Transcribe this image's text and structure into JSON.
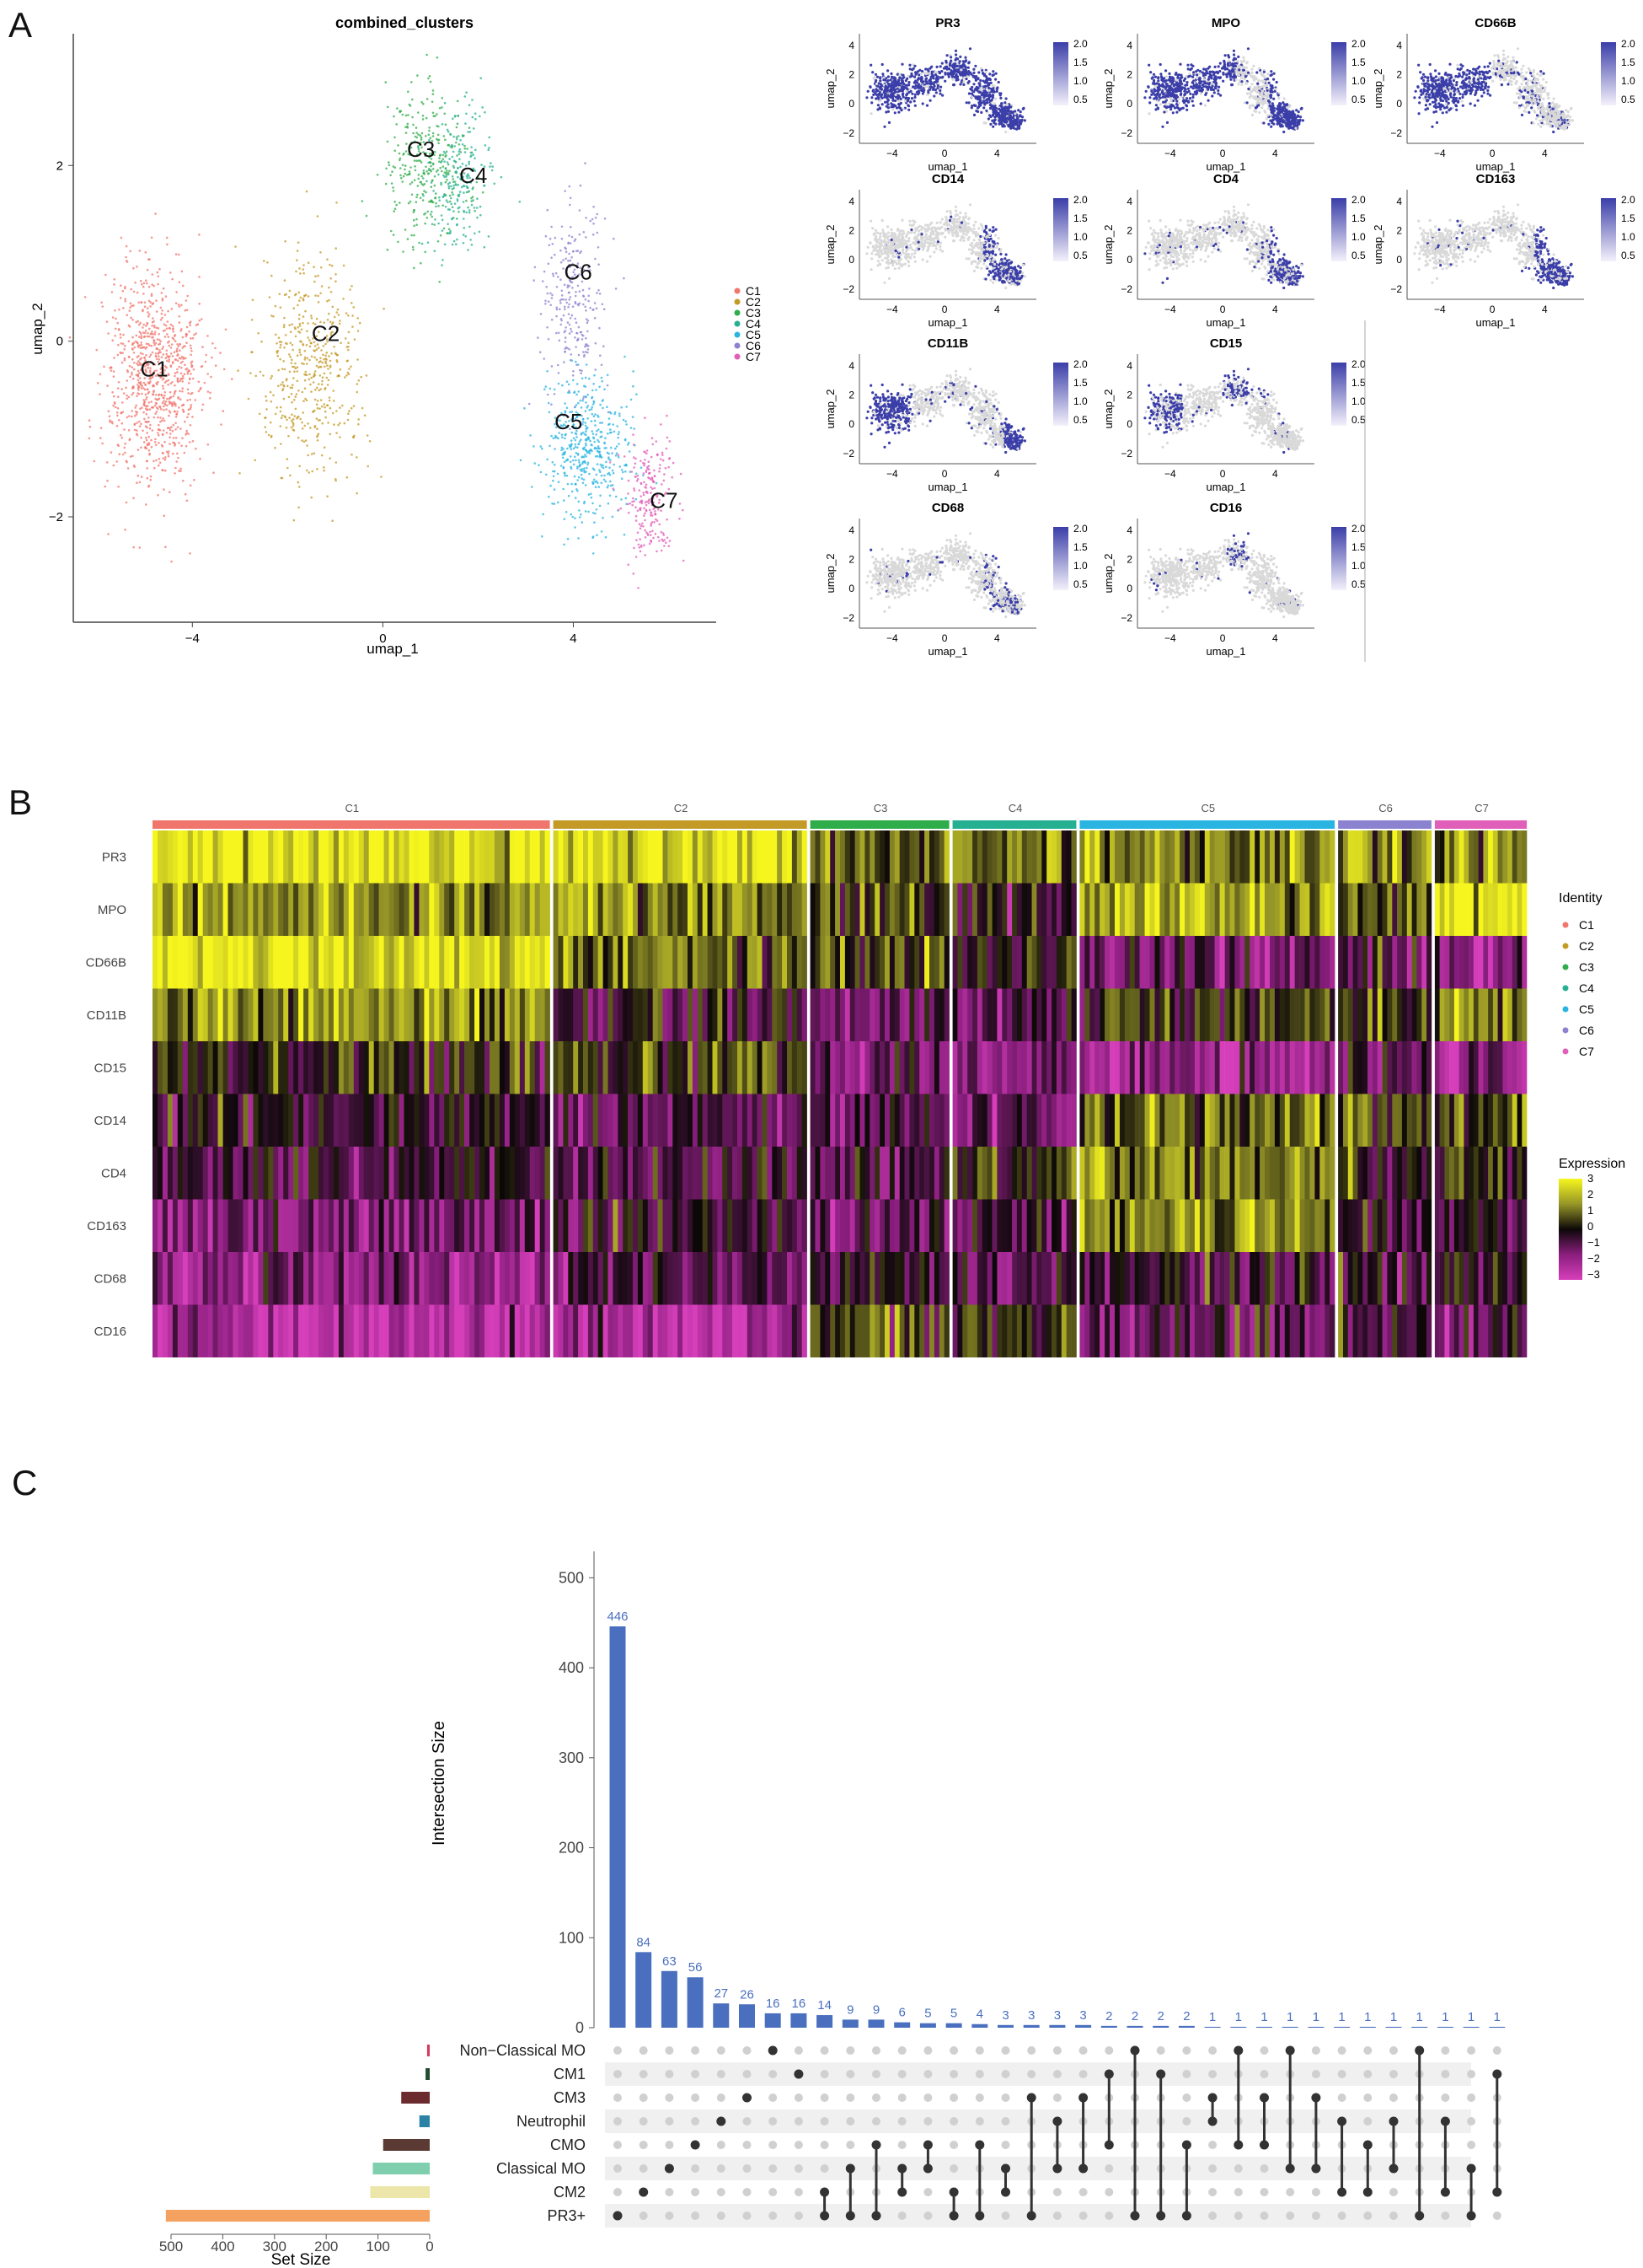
{
  "panels": {
    "a": {
      "letter": "A",
      "umap": {
        "title": "combined_clusters",
        "xlabel": "umap_1",
        "ylabel": "umap_2",
        "xticks": [
          "−4",
          "0",
          "4"
        ],
        "yticks": [
          "2",
          "0",
          "−2"
        ],
        "cluster_labels": [
          "C1",
          "C2",
          "C3",
          "C4",
          "C5",
          "C6",
          "C7"
        ],
        "legend": [
          "C1",
          "C2",
          "C3",
          "C4",
          "C5",
          "C6",
          "C7"
        ]
      },
      "feature_plots": {
        "xlabel": "umap_1",
        "ylabel": "umap_2",
        "xticks": [
          "−4",
          "0",
          "4"
        ],
        "yticks": [
          "4",
          "2",
          "0",
          "−2"
        ],
        "scale_ticks": [
          "2.0",
          "1.5",
          "1.0",
          "0.5"
        ],
        "markers": [
          "PR3",
          "MPO",
          "CD66B",
          "CD14",
          "CD4",
          "CD163",
          "CD11B",
          "CD15",
          "CD68",
          "CD16"
        ]
      }
    },
    "b": {
      "letter": "B",
      "clusters": [
        "C1",
        "C2",
        "C3",
        "C4",
        "C5",
        "C6",
        "C7"
      ],
      "genes": [
        "PR3",
        "MPO",
        "CD66B",
        "CD11B",
        "CD15",
        "CD14",
        "CD4",
        "CD163",
        "CD68",
        "CD16"
      ],
      "identity_title": "Identity",
      "identity_items": [
        "C1",
        "C2",
        "C3",
        "C4",
        "C5",
        "C6",
        "C7"
      ],
      "expression_title": "Expression",
      "expression_ticks": [
        "3",
        "2",
        "1",
        "0",
        "−1",
        "−2",
        "−3"
      ]
    },
    "c": {
      "letter": "C",
      "y_axis_label": "Intersection Size",
      "y_ticks": [
        "0",
        "100",
        "200",
        "300",
        "400",
        "500"
      ],
      "set_size_label": "Set Size",
      "set_size_ticks": [
        "500",
        "400",
        "300",
        "200",
        "100",
        "0"
      ]
    }
  },
  "colors": {
    "C1": "#f0766d",
    "C2": "#c49a27",
    "C3": "#2fad4a",
    "C4": "#25b091",
    "C5": "#2ab4e2",
    "C6": "#8c83d0",
    "C7": "#e05fb8",
    "feature_high": "#3b3ea8",
    "feature_low": "#d9d9d9",
    "upset_bar": "#4a6fbf",
    "dot_on": "#333333",
    "dot_off": "#d0d0d0"
  },
  "chart_data": [
    {
      "type": "scatter",
      "title": "combined_clusters",
      "xlabel": "umap_1",
      "ylabel": "umap_2",
      "xlim": [
        -6.5,
        7
      ],
      "ylim": [
        -3.2,
        3.5
      ],
      "series": [
        {
          "name": "C1",
          "center": [
            -4.8,
            -0.4
          ]
        },
        {
          "name": "C2",
          "center": [
            -1.5,
            -0.3
          ]
        },
        {
          "name": "C3",
          "center": [
            0.9,
            2.0
          ]
        },
        {
          "name": "C4",
          "center": [
            1.6,
            1.8
          ]
        },
        {
          "name": "C5",
          "center": [
            4.3,
            -1.2
          ]
        },
        {
          "name": "C6",
          "center": [
            4.0,
            0.5
          ]
        },
        {
          "name": "C7",
          "center": [
            5.6,
            -1.8
          ]
        }
      ]
    },
    {
      "type": "heatmap",
      "x": [
        "C1",
        "C2",
        "C3",
        "C4",
        "C5",
        "C6",
        "C7"
      ],
      "y": [
        "PR3",
        "MPO",
        "CD66B",
        "CD11B",
        "CD15",
        "CD14",
        "CD4",
        "CD163",
        "CD68",
        "CD16"
      ],
      "cluster_widths": [
        0.29,
        0.186,
        0.103,
        0.092,
        0.187,
        0.07,
        0.069
      ],
      "values": [
        [
          2.8,
          2.6,
          1.0,
          1.2,
          1.3,
          1.4,
          1.5
        ],
        [
          1.5,
          1.5,
          0.6,
          -0.4,
          1.8,
          1.0,
          2.9
        ],
        [
          2.9,
          1.0,
          0.5,
          0.0,
          -1.3,
          -0.6,
          -1.6
        ],
        [
          1.5,
          -0.6,
          -0.8,
          -1.0,
          0.3,
          0.4,
          1.2
        ],
        [
          0.1,
          0.6,
          -1.2,
          -1.4,
          -1.8,
          -0.9,
          -1.6
        ],
        [
          -0.3,
          -0.9,
          -1.0,
          -1.2,
          1.1,
          0.9,
          0.9
        ],
        [
          -0.6,
          -0.5,
          -0.8,
          0.1,
          1.3,
          0.0,
          0.2
        ],
        [
          -1.4,
          -0.5,
          -1.0,
          -0.9,
          1.5,
          -0.4,
          -0.3
        ],
        [
          -1.7,
          -0.9,
          -0.5,
          -0.8,
          -0.5,
          -0.3,
          -0.2
        ],
        [
          -2.4,
          -2.1,
          0.3,
          0.2,
          -1.2,
          -0.6,
          -0.9
        ]
      ]
    },
    {
      "type": "bar",
      "title": "",
      "xlabel": "",
      "ylabel": "Intersection Size",
      "ylim": [
        0,
        520
      ],
      "sets": [
        "Non−Classical MO",
        "CM1",
        "CM3",
        "Neutrophil",
        "CMO",
        "Classical MO",
        "CM2",
        "PR3+"
      ],
      "set_colors": [
        "#d6395a",
        "#1f4d2f",
        "#6b2b2f",
        "#2b82a6",
        "#5a3a33",
        "#7fcfae",
        "#ece6ab",
        "#f5a15f"
      ],
      "set_sizes": [
        5,
        8,
        55,
        20,
        90,
        110,
        115,
        510
      ],
      "values": [
        446,
        84,
        63,
        56,
        27,
        26,
        16,
        16,
        14,
        9,
        9,
        6,
        5,
        5,
        4,
        3,
        3,
        3,
        3,
        2,
        2,
        2,
        2,
        1,
        1,
        1,
        1,
        1,
        1,
        1,
        1,
        1,
        1,
        1,
        1
      ],
      "memberships": [
        [
          7
        ],
        [
          6
        ],
        [
          5
        ],
        [
          4
        ],
        [
          3
        ],
        [
          2
        ],
        [
          0
        ],
        [
          1
        ],
        [
          6,
          7
        ],
        [
          5,
          7
        ],
        [
          4,
          7
        ],
        [
          5,
          6
        ],
        [
          4,
          5
        ],
        [
          6,
          7
        ],
        [
          4,
          7
        ],
        [
          5,
          6
        ],
        [
          2,
          7
        ],
        [
          3,
          5
        ],
        [
          2,
          5
        ],
        [
          1,
          4
        ],
        [
          0,
          7
        ],
        [
          1,
          7
        ],
        [
          4,
          7
        ],
        [
          2,
          3
        ],
        [
          0,
          4
        ],
        [
          2,
          4
        ],
        [
          0,
          5
        ],
        [
          2,
          5
        ],
        [
          3,
          6
        ],
        [
          4,
          6
        ],
        [
          3,
          5
        ],
        [
          0,
          7
        ],
        [
          3,
          6
        ],
        [
          5,
          7
        ],
        [
          1,
          6
        ]
      ]
    }
  ]
}
